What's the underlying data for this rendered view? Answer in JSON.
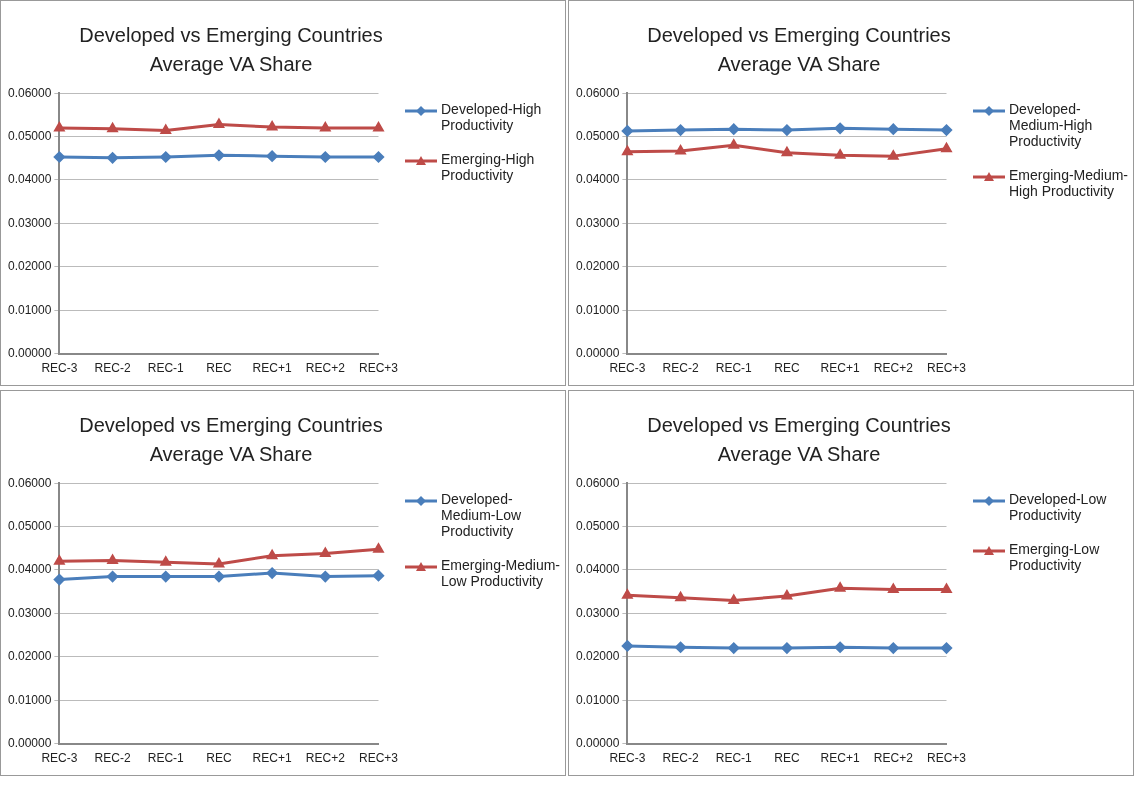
{
  "chart_data": [
    {
      "type": "line",
      "title": "Developed vs Emerging Countries Average VA Share",
      "categories": [
        "REC-3",
        "REC-2",
        "REC-1",
        "REC",
        "REC+1",
        "REC+2",
        "REC+3"
      ],
      "ylim": [
        0,
        0.06
      ],
      "yticks": [
        {
          "value": 0,
          "label": "0.00000"
        },
        {
          "value": 0.01,
          "label": "0.01000"
        },
        {
          "value": 0.02,
          "label": "0.02000"
        },
        {
          "value": 0.03,
          "label": "0.03000"
        },
        {
          "value": 0.04,
          "label": "0.04000"
        },
        {
          "value": 0.05,
          "label": "0.05000"
        },
        {
          "value": 0.06,
          "label": "0.06000"
        }
      ],
      "grid": "y",
      "legend": "right",
      "series": [
        {
          "name": "Developed-High Productivity",
          "color": "#4a7ebb",
          "marker": "diamond",
          "values": [
            0.0453,
            0.0451,
            0.0453,
            0.0457,
            0.0455,
            0.0453,
            0.0453
          ]
        },
        {
          "name": "Emerging-High Productivity",
          "color": "#be4b48",
          "marker": "triangle",
          "values": [
            0.052,
            0.0518,
            0.0514,
            0.0528,
            0.0522,
            0.052,
            0.052
          ]
        }
      ]
    },
    {
      "type": "line",
      "title": "Developed vs Emerging Countries Average VA Share",
      "categories": [
        "REC-3",
        "REC-2",
        "REC-1",
        "REC",
        "REC+1",
        "REC+2",
        "REC+3"
      ],
      "ylim": [
        0,
        0.06
      ],
      "yticks": [
        {
          "value": 0,
          "label": "0.00000"
        },
        {
          "value": 0.01,
          "label": "0.01000"
        },
        {
          "value": 0.02,
          "label": "0.02000"
        },
        {
          "value": 0.03,
          "label": "0.03000"
        },
        {
          "value": 0.04,
          "label": "0.04000"
        },
        {
          "value": 0.05,
          "label": "0.05000"
        },
        {
          "value": 0.06,
          "label": "0.06000"
        }
      ],
      "grid": "y",
      "legend": "right",
      "series": [
        {
          "name": "Developed-Medium-High Productivity",
          "color": "#4a7ebb",
          "marker": "diamond",
          "values": [
            0.0513,
            0.0515,
            0.0517,
            0.0515,
            0.0519,
            0.0517,
            0.0515
          ]
        },
        {
          "name": "Emerging-Medium-High Productivity",
          "color": "#be4b48",
          "marker": "triangle",
          "values": [
            0.0465,
            0.0467,
            0.048,
            0.0463,
            0.0457,
            0.0455,
            0.0472
          ]
        }
      ]
    },
    {
      "type": "line",
      "title": "Developed vs Emerging Countries Average VA Share",
      "categories": [
        "REC-3",
        "REC-2",
        "REC-1",
        "REC",
        "REC+1",
        "REC+2",
        "REC+3"
      ],
      "ylim": [
        0,
        0.06
      ],
      "yticks": [
        {
          "value": 0,
          "label": "0.00000"
        },
        {
          "value": 0.01,
          "label": "0.01000"
        },
        {
          "value": 0.02,
          "label": "0.02000"
        },
        {
          "value": 0.03,
          "label": "0.03000"
        },
        {
          "value": 0.04,
          "label": "0.04000"
        },
        {
          "value": 0.05,
          "label": "0.05000"
        },
        {
          "value": 0.06,
          "label": "0.06000"
        }
      ],
      "grid": "y",
      "legend": "right",
      "series": [
        {
          "name": "Developed-Medium-Low Productivity",
          "color": "#4a7ebb",
          "marker": "diamond",
          "values": [
            0.0378,
            0.0385,
            0.0385,
            0.0385,
            0.0393,
            0.0385,
            0.0387
          ]
        },
        {
          "name": "Emerging-Medium-Low Productivity",
          "color": "#be4b48",
          "marker": "triangle",
          "values": [
            0.042,
            0.0422,
            0.0418,
            0.0414,
            0.0433,
            0.0438,
            0.0448
          ]
        }
      ]
    },
    {
      "type": "line",
      "title": "Developed vs Emerging Countries Average VA Share",
      "categories": [
        "REC-3",
        "REC-2",
        "REC-1",
        "REC",
        "REC+1",
        "REC+2",
        "REC+3"
      ],
      "ylim": [
        0,
        0.06
      ],
      "yticks": [
        {
          "value": 0,
          "label": "0.00000"
        },
        {
          "value": 0.01,
          "label": "0.01000"
        },
        {
          "value": 0.02,
          "label": "0.02000"
        },
        {
          "value": 0.03,
          "label": "0.03000"
        },
        {
          "value": 0.04,
          "label": "0.04000"
        },
        {
          "value": 0.05,
          "label": "0.05000"
        },
        {
          "value": 0.06,
          "label": "0.06000"
        }
      ],
      "grid": "y",
      "legend": "right",
      "series": [
        {
          "name": "Developed-Low Productivity",
          "color": "#4a7ebb",
          "marker": "diamond",
          "values": [
            0.0225,
            0.0222,
            0.022,
            0.022,
            0.0222,
            0.022,
            0.022
          ]
        },
        {
          "name": "Emerging-Low Productivity",
          "color": "#be4b48",
          "marker": "triangle",
          "values": [
            0.0342,
            0.0336,
            0.033,
            0.034,
            0.0358,
            0.0355,
            0.0355
          ]
        }
      ]
    }
  ]
}
